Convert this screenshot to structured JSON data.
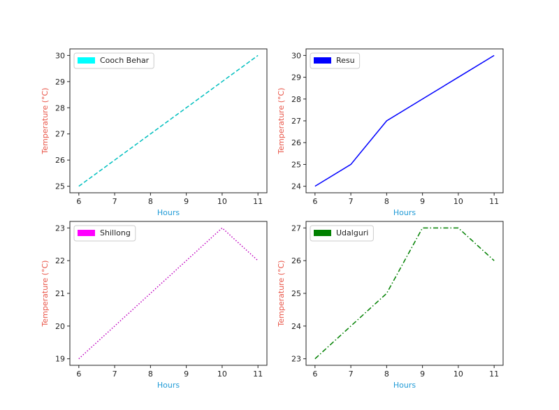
{
  "chart_data": [
    {
      "type": "line",
      "x_label": "Hours",
      "y_label": "Temperature (°C)",
      "x": [
        6,
        7,
        8,
        9,
        10,
        11
      ],
      "series": [
        {
          "name": "Cooch Behar",
          "color": "#00bfbf",
          "legend_color": "#00ffff",
          "linestyle": "dashed",
          "values": [
            25,
            26,
            27,
            28,
            29,
            30
          ]
        }
      ],
      "xlim": [
        5.75,
        11.25
      ],
      "xticks": [
        6,
        7,
        8,
        9,
        10,
        11
      ],
      "ylim": [
        24.75,
        30.25
      ],
      "yticks": [
        25,
        26,
        27,
        28,
        29,
        30
      ],
      "legend": "upper left"
    },
    {
      "type": "line",
      "x_label": "Hours",
      "y_label": "Temperature (°C)",
      "x": [
        6,
        7,
        8,
        9,
        10,
        11
      ],
      "series": [
        {
          "name": "Resu",
          "color": "#0000ff",
          "legend_color": "#0000ff",
          "linestyle": "solid",
          "values": [
            24,
            25,
            27,
            28,
            29,
            30
          ]
        }
      ],
      "xlim": [
        5.75,
        11.25
      ],
      "xticks": [
        6,
        7,
        8,
        9,
        10,
        11
      ],
      "ylim": [
        23.7,
        30.3
      ],
      "yticks": [
        24,
        25,
        26,
        27,
        28,
        29,
        30
      ],
      "legend": "upper left"
    },
    {
      "type": "line",
      "x_label": "Hours",
      "y_label": "Temperature (°C)",
      "x": [
        6,
        7,
        8,
        9,
        10,
        11
      ],
      "series": [
        {
          "name": "Shillong",
          "color": "#bf00bf",
          "legend_color": "#ff00ff",
          "linestyle": "dotted",
          "values": [
            19,
            20,
            21,
            22,
            23,
            22
          ]
        }
      ],
      "xlim": [
        5.75,
        11.25
      ],
      "xticks": [
        6,
        7,
        8,
        9,
        10,
        11
      ],
      "ylim": [
        18.8,
        23.2
      ],
      "yticks": [
        19,
        20,
        21,
        22,
        23
      ],
      "legend": "upper left"
    },
    {
      "type": "line",
      "x_label": "Hours",
      "y_label": "Temperature (°C)",
      "x": [
        6,
        7,
        8,
        9,
        10,
        11
      ],
      "series": [
        {
          "name": "Udalguri",
          "color": "#008000",
          "legend_color": "#008000",
          "linestyle": "dashdot",
          "values": [
            23,
            24,
            25,
            27,
            27,
            26
          ]
        }
      ],
      "xlim": [
        5.75,
        11.25
      ],
      "xticks": [
        6,
        7,
        8,
        9,
        10,
        11
      ],
      "ylim": [
        22.8,
        27.2
      ],
      "yticks": [
        23,
        24,
        25,
        26,
        27
      ],
      "legend": "upper left"
    }
  ]
}
